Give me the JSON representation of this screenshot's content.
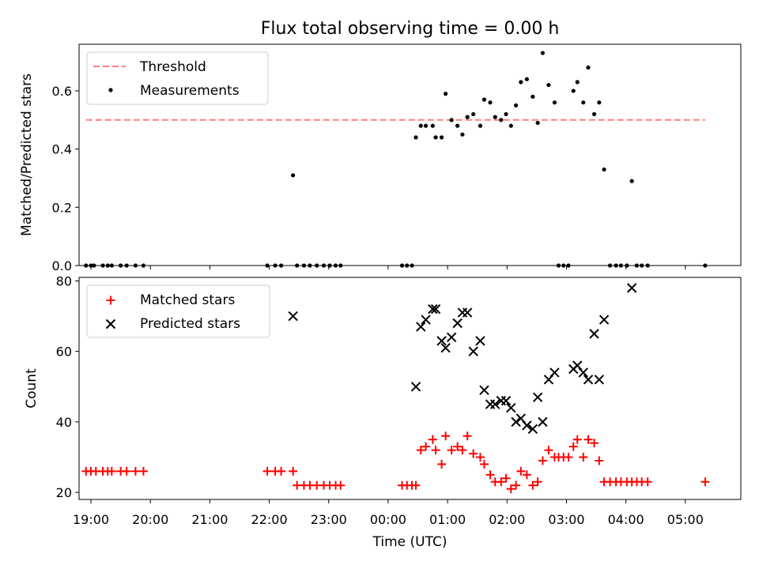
{
  "chart_data": [
    {
      "type": "scatter",
      "title": "Flux total observing time = 0.00 h",
      "xlabel": "",
      "ylabel": "Matched/Predicted stars",
      "xlim": [
        "18:48",
        "05:56"
      ],
      "ylim": [
        0,
        0.76
      ],
      "y_ticks": [
        "0.0",
        "0.2",
        "0.4",
        "0.6"
      ],
      "grid": false,
      "legend_position": "top-left",
      "threshold": {
        "name": "Threshold",
        "value": 0.5,
        "x_start": "18:55",
        "x_end": "05:20",
        "color": "#ff7f7f"
      },
      "series": [
        {
          "name": "Measurements",
          "marker": "dot",
          "color": "#000000",
          "points": [
            [
              "18:55",
              0
            ],
            [
              "19:00",
              0
            ],
            [
              "19:03",
              0
            ],
            [
              "19:12",
              0
            ],
            [
              "19:17",
              0
            ],
            [
              "19:21",
              0
            ],
            [
              "19:30",
              0
            ],
            [
              "19:36",
              0
            ],
            [
              "19:45",
              0
            ],
            [
              "19:53",
              0
            ],
            [
              "21:58",
              0
            ],
            [
              "22:06",
              0
            ],
            [
              "22:12",
              0
            ],
            [
              "22:24",
              0.31
            ],
            [
              "22:28",
              0
            ],
            [
              "22:35",
              0
            ],
            [
              "22:41",
              0
            ],
            [
              "22:48",
              0
            ],
            [
              "22:55",
              0
            ],
            [
              "23:01",
              0
            ],
            [
              "23:07",
              0
            ],
            [
              "23:12",
              0
            ],
            [
              "00:14",
              0
            ],
            [
              "00:19",
              0
            ],
            [
              "00:24",
              0
            ],
            [
              "00:28",
              0.44
            ],
            [
              "00:33",
              0.48
            ],
            [
              "00:38",
              0.48
            ],
            [
              "00:45",
              0.48
            ],
            [
              "00:48",
              0.44
            ],
            [
              "00:54",
              0.44
            ],
            [
              "00:58",
              0.59
            ],
            [
              "01:04",
              0.5
            ],
            [
              "01:10",
              0.48
            ],
            [
              "01:15",
              0.45
            ],
            [
              "01:20",
              0.51
            ],
            [
              "01:26",
              0.52
            ],
            [
              "01:33",
              0.48
            ],
            [
              "01:37",
              0.57
            ],
            [
              "01:43",
              0.56
            ],
            [
              "01:48",
              0.51
            ],
            [
              "01:54",
              0.5
            ],
            [
              "01:59",
              0.52
            ],
            [
              "02:04",
              0.48
            ],
            [
              "02:09",
              0.55
            ],
            [
              "02:14",
              0.63
            ],
            [
              "02:20",
              0.64
            ],
            [
              "02:26",
              0.58
            ],
            [
              "02:31",
              0.49
            ],
            [
              "02:36",
              0.73
            ],
            [
              "02:42",
              0.62
            ],
            [
              "02:48",
              0.56
            ],
            [
              "02:52",
              0
            ],
            [
              "02:57",
              0
            ],
            [
              "03:02",
              0
            ],
            [
              "03:07",
              0.6
            ],
            [
              "03:11",
              0.63
            ],
            [
              "03:17",
              0.56
            ],
            [
              "03:22",
              0.68
            ],
            [
              "03:28",
              0.52
            ],
            [
              "03:33",
              0.56
            ],
            [
              "03:38",
              0.33
            ],
            [
              "03:44",
              0
            ],
            [
              "03:50",
              0
            ],
            [
              "03:55",
              0
            ],
            [
              "04:01",
              0
            ],
            [
              "04:06",
              0.29
            ],
            [
              "04:11",
              0
            ],
            [
              "04:16",
              0
            ],
            [
              "04:22",
              0
            ],
            [
              "05:20",
              0
            ]
          ]
        }
      ]
    },
    {
      "type": "scatter",
      "title": "",
      "xlabel": "Time (UTC)",
      "ylabel": "Count",
      "xlim": [
        "18:48",
        "05:56"
      ],
      "ylim": [
        18,
        81
      ],
      "y_ticks": [
        "20",
        "40",
        "60",
        "80"
      ],
      "x_ticks": [
        "19:00",
        "20:00",
        "21:00",
        "22:00",
        "23:00",
        "00:00",
        "01:00",
        "02:00",
        "03:00",
        "04:00",
        "05:00"
      ],
      "grid": false,
      "legend_position": "top-left",
      "series": [
        {
          "name": "Matched stars",
          "marker": "plus",
          "color": "#ff0000",
          "points": [
            [
              "18:55",
              26
            ],
            [
              "19:00",
              26
            ],
            [
              "19:05",
              26
            ],
            [
              "19:12",
              26
            ],
            [
              "19:17",
              26
            ],
            [
              "19:21",
              26
            ],
            [
              "19:30",
              26
            ],
            [
              "19:36",
              26
            ],
            [
              "19:45",
              26
            ],
            [
              "19:53",
              26
            ],
            [
              "21:58",
              26
            ],
            [
              "22:06",
              26
            ],
            [
              "22:12",
              26
            ],
            [
              "22:24",
              26
            ],
            [
              "22:28",
              22
            ],
            [
              "22:35",
              22
            ],
            [
              "22:41",
              22
            ],
            [
              "22:48",
              22
            ],
            [
              "22:55",
              22
            ],
            [
              "23:01",
              22
            ],
            [
              "23:07",
              22
            ],
            [
              "23:12",
              22
            ],
            [
              "00:14",
              22
            ],
            [
              "00:19",
              22
            ],
            [
              "00:24",
              22
            ],
            [
              "00:28",
              22
            ],
            [
              "00:33",
              32
            ],
            [
              "00:38",
              33
            ],
            [
              "00:45",
              35
            ],
            [
              "00:48",
              32
            ],
            [
              "00:54",
              28
            ],
            [
              "00:58",
              36
            ],
            [
              "01:04",
              32
            ],
            [
              "01:10",
              33
            ],
            [
              "01:15",
              32
            ],
            [
              "01:20",
              36
            ],
            [
              "01:26",
              31
            ],
            [
              "01:33",
              30
            ],
            [
              "01:37",
              28
            ],
            [
              "01:43",
              25
            ],
            [
              "01:48",
              23
            ],
            [
              "01:54",
              23
            ],
            [
              "01:59",
              24
            ],
            [
              "02:04",
              21
            ],
            [
              "02:09",
              22
            ],
            [
              "02:14",
              26
            ],
            [
              "02:20",
              25
            ],
            [
              "02:26",
              22
            ],
            [
              "02:31",
              23
            ],
            [
              "02:36",
              29
            ],
            [
              "02:42",
              32
            ],
            [
              "02:48",
              30
            ],
            [
              "02:52",
              30
            ],
            [
              "02:57",
              30
            ],
            [
              "03:02",
              30
            ],
            [
              "03:07",
              33
            ],
            [
              "03:11",
              35
            ],
            [
              "03:17",
              30
            ],
            [
              "03:22",
              35
            ],
            [
              "03:28",
              34
            ],
            [
              "03:33",
              29
            ],
            [
              "03:38",
              23
            ],
            [
              "03:44",
              23
            ],
            [
              "03:50",
              23
            ],
            [
              "03:55",
              23
            ],
            [
              "04:01",
              23
            ],
            [
              "04:06",
              23
            ],
            [
              "04:11",
              23
            ],
            [
              "04:16",
              23
            ],
            [
              "04:22",
              23
            ],
            [
              "05:20",
              23
            ]
          ]
        },
        {
          "name": "Predicted stars",
          "marker": "x",
          "color": "#000000",
          "points": [
            [
              "22:24",
              70
            ],
            [
              "00:28",
              50
            ],
            [
              "00:33",
              67
            ],
            [
              "00:38",
              69
            ],
            [
              "00:45",
              72
            ],
            [
              "00:48",
              72
            ],
            [
              "00:54",
              63
            ],
            [
              "00:58",
              61
            ],
            [
              "01:04",
              64
            ],
            [
              "01:10",
              68
            ],
            [
              "01:15",
              71
            ],
            [
              "01:20",
              71
            ],
            [
              "01:26",
              60
            ],
            [
              "01:33",
              63
            ],
            [
              "01:37",
              49
            ],
            [
              "01:43",
              45
            ],
            [
              "01:48",
              45
            ],
            [
              "01:54",
              46
            ],
            [
              "01:59",
              46
            ],
            [
              "02:04",
              44
            ],
            [
              "02:09",
              40
            ],
            [
              "02:14",
              41
            ],
            [
              "02:20",
              39
            ],
            [
              "02:26",
              38
            ],
            [
              "02:31",
              47
            ],
            [
              "02:36",
              40
            ],
            [
              "02:42",
              52
            ],
            [
              "02:48",
              54
            ],
            [
              "03:07",
              55
            ],
            [
              "03:11",
              56
            ],
            [
              "03:17",
              54
            ],
            [
              "03:22",
              52
            ],
            [
              "03:28",
              65
            ],
            [
              "03:33",
              52
            ],
            [
              "03:38",
              69
            ],
            [
              "04:06",
              78
            ]
          ]
        }
      ]
    }
  ]
}
